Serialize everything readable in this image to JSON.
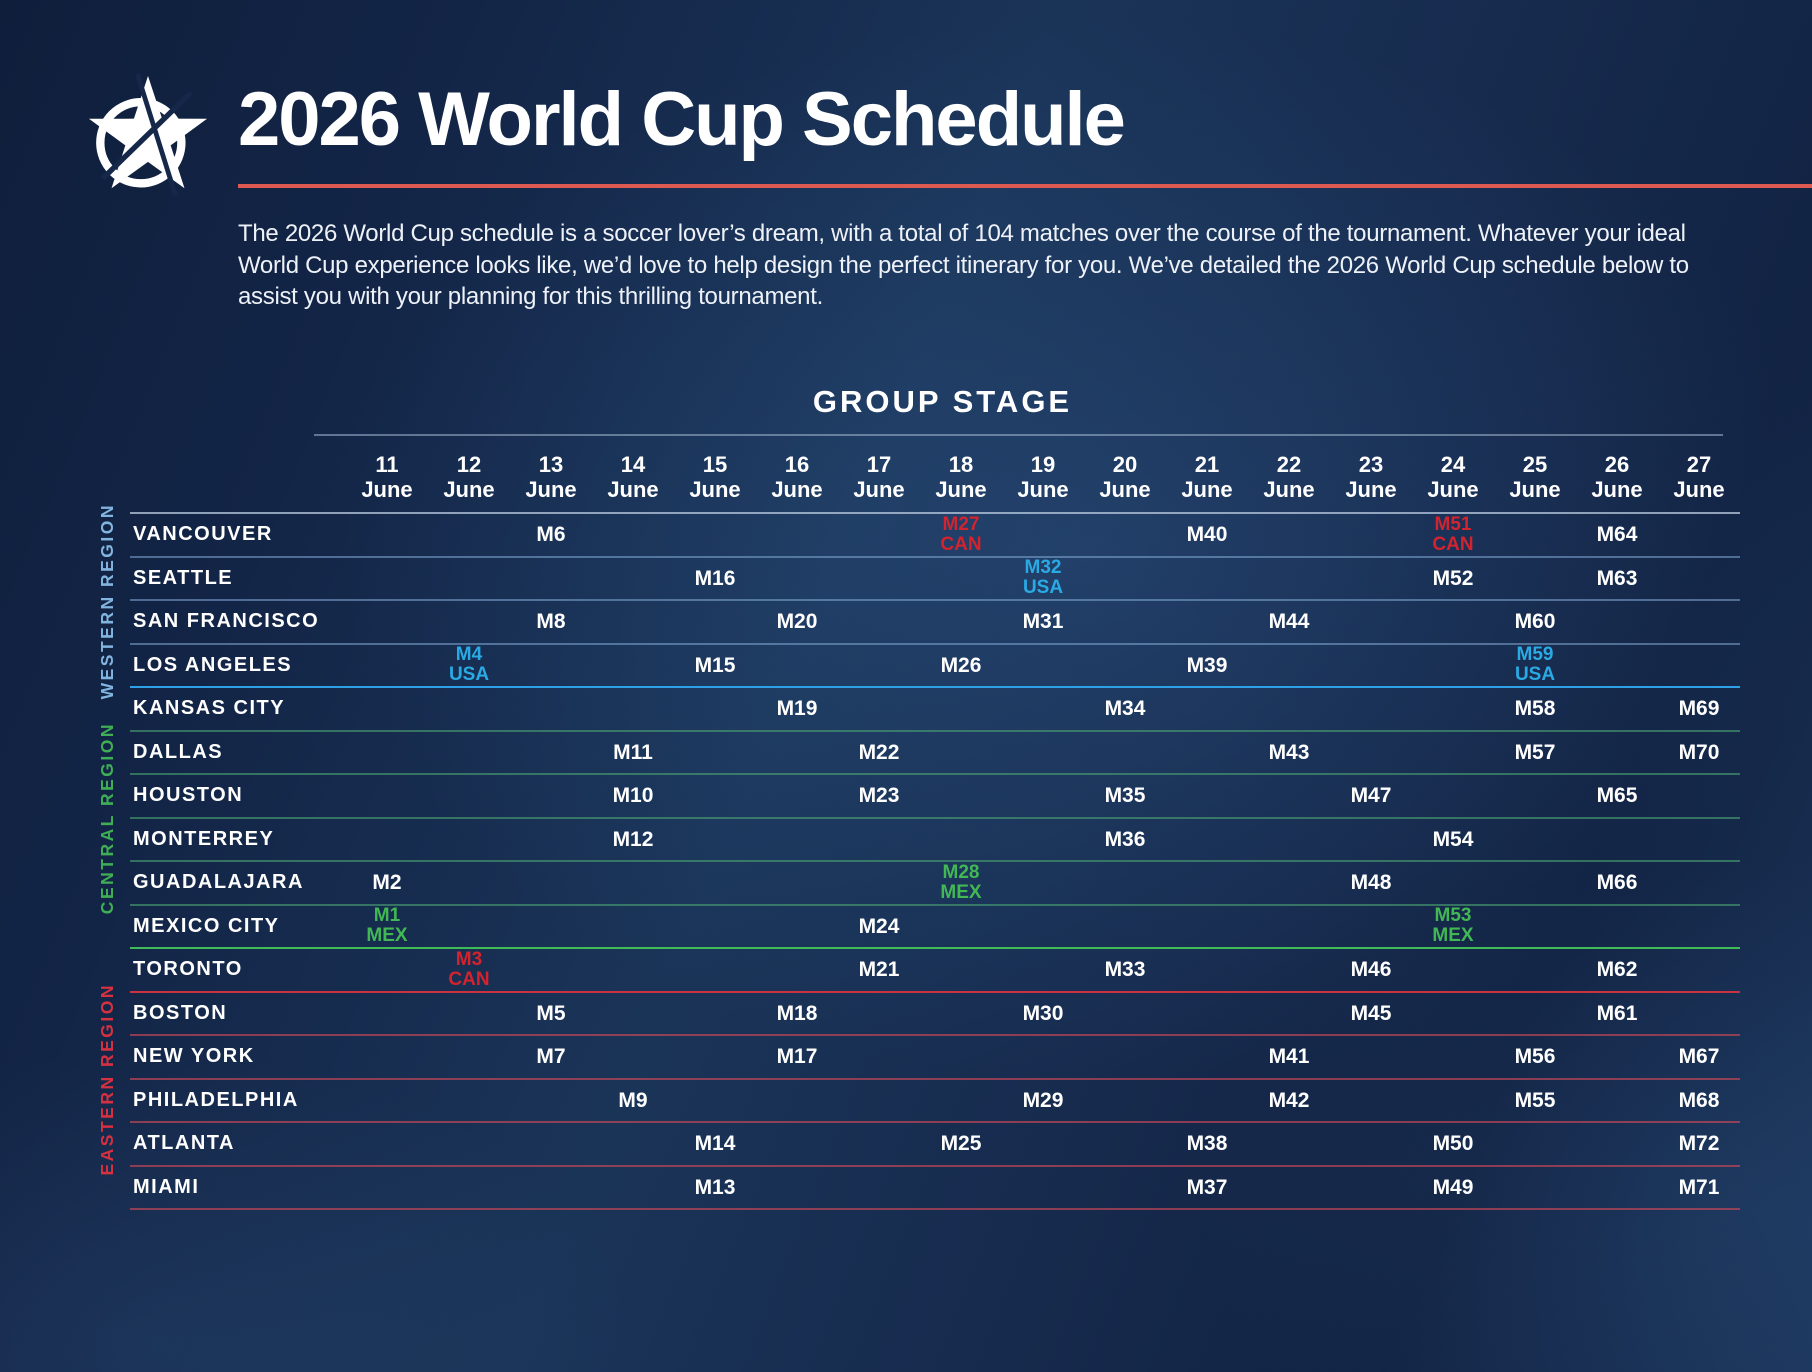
{
  "header": {
    "title": "2026 World Cup Schedule",
    "intro": "The 2026 World Cup schedule is a soccer lover’s dream, with a total of 104 matches over the course of the tournament. Whatever your ideal World Cup experience looks like, we’d love to help design the perfect itinerary for you. We’ve detailed the 2026 World Cup schedule below to assist you with your planning for this thrilling tournament."
  },
  "section": {
    "title": "GROUP STAGE"
  },
  "colors": {
    "title_underline": "#dd5a52",
    "table_top_line": "rgba(185,203,223,0.75)",
    "section_underline": "rgba(175,196,220,0.5)"
  },
  "schedule": {
    "dates": [
      {
        "day": "11",
        "month": "June"
      },
      {
        "day": "12",
        "month": "June"
      },
      {
        "day": "13",
        "month": "June"
      },
      {
        "day": "14",
        "month": "June"
      },
      {
        "day": "15",
        "month": "June"
      },
      {
        "day": "16",
        "month": "June"
      },
      {
        "day": "17",
        "month": "June"
      },
      {
        "day": "18",
        "month": "June"
      },
      {
        "day": "19",
        "month": "June"
      },
      {
        "day": "20",
        "month": "June"
      },
      {
        "day": "21",
        "month": "June"
      },
      {
        "day": "22",
        "month": "June"
      },
      {
        "day": "23",
        "month": "June"
      },
      {
        "day": "24",
        "month": "June"
      },
      {
        "day": "25",
        "month": "June"
      },
      {
        "day": "26",
        "month": "June"
      },
      {
        "day": "27",
        "month": "June"
      }
    ],
    "team_colors": {
      "USA": "#2aaae4",
      "MEX": "#41b854",
      "CAN": "#d2232e"
    },
    "regions": [
      {
        "name": "WESTERN REGION",
        "label_color": "#82b4e0",
        "row_line": "rgba(130,170,212,0.55)",
        "end_line": "#2da0e6",
        "cities": [
          {
            "name": "VANCOUVER",
            "matches": [
              {
                "day": "13",
                "m": "M6"
              },
              {
                "day": "18",
                "m": "M27",
                "team": "CAN"
              },
              {
                "day": "21",
                "m": "M40"
              },
              {
                "day": "24",
                "m": "M51",
                "team": "CAN"
              },
              {
                "day": "26",
                "m": "M64"
              }
            ]
          },
          {
            "name": "SEATTLE",
            "matches": [
              {
                "day": "15",
                "m": "M16"
              },
              {
                "day": "19",
                "m": "M32",
                "team": "USA"
              },
              {
                "day": "24",
                "m": "M52"
              },
              {
                "day": "26",
                "m": "M63"
              }
            ]
          },
          {
            "name": "SAN FRANCISCO",
            "matches": [
              {
                "day": "13",
                "m": "M8"
              },
              {
                "day": "16",
                "m": "M20"
              },
              {
                "day": "19",
                "m": "M31"
              },
              {
                "day": "22",
                "m": "M44"
              },
              {
                "day": "25",
                "m": "M60"
              }
            ]
          },
          {
            "name": "LOS ANGELES",
            "matches": [
              {
                "day": "12",
                "m": "M4",
                "team": "USA"
              },
              {
                "day": "15",
                "m": "M15"
              },
              {
                "day": "18",
                "m": "M26"
              },
              {
                "day": "21",
                "m": "M39"
              },
              {
                "day": "25",
                "m": "M59",
                "team": "USA"
              }
            ]
          }
        ]
      },
      {
        "name": "CENTRAL REGION",
        "label_color": "#3fae55",
        "row_line": "rgba(75,165,115,0.6)",
        "end_line": "#3fbb58",
        "cities": [
          {
            "name": "KANSAS CITY",
            "matches": [
              {
                "day": "16",
                "m": "M19"
              },
              {
                "day": "20",
                "m": "M34"
              },
              {
                "day": "25",
                "m": "M58"
              },
              {
                "day": "27",
                "m": "M69"
              }
            ]
          },
          {
            "name": "DALLAS",
            "matches": [
              {
                "day": "14",
                "m": "M11"
              },
              {
                "day": "17",
                "m": "M22"
              },
              {
                "day": "22",
                "m": "M43"
              },
              {
                "day": "25",
                "m": "M57"
              },
              {
                "day": "27",
                "m": "M70"
              }
            ]
          },
          {
            "name": "HOUSTON",
            "matches": [
              {
                "day": "14",
                "m": "M10"
              },
              {
                "day": "17",
                "m": "M23"
              },
              {
                "day": "20",
                "m": "M35"
              },
              {
                "day": "23",
                "m": "M47"
              },
              {
                "day": "26",
                "m": "M65"
              }
            ]
          },
          {
            "name": "MONTERREY",
            "matches": [
              {
                "day": "14",
                "m": "M12"
              },
              {
                "day": "20",
                "m": "M36"
              },
              {
                "day": "24",
                "m": "M54"
              }
            ]
          },
          {
            "name": "GUADALAJARA",
            "matches": [
              {
                "day": "11",
                "m": "M2"
              },
              {
                "day": "18",
                "m": "M28",
                "team": "MEX"
              },
              {
                "day": "23",
                "m": "M48"
              },
              {
                "day": "26",
                "m": "M66"
              }
            ]
          },
          {
            "name": "MEXICO CITY",
            "matches": [
              {
                "day": "11",
                "m": "M1",
                "team": "MEX"
              },
              {
                "day": "17",
                "m": "M24"
              },
              {
                "day": "24",
                "m": "M53",
                "team": "MEX"
              }
            ]
          }
        ]
      },
      {
        "name": "EASTERN REGION",
        "label_color": "#d53140",
        "row_line": "rgba(205,72,88,0.65)",
        "end_line": "rgba(205,72,88,0.65)",
        "cities": [
          {
            "name": "TORONTO",
            "line": "#cb3240",
            "matches": [
              {
                "day": "12",
                "m": "M3",
                "team": "CAN"
              },
              {
                "day": "17",
                "m": "M21"
              },
              {
                "day": "20",
                "m": "M33"
              },
              {
                "day": "23",
                "m": "M46"
              },
              {
                "day": "26",
                "m": "M62"
              }
            ]
          },
          {
            "name": "BOSTON",
            "matches": [
              {
                "day": "13",
                "m": "M5"
              },
              {
                "day": "16",
                "m": "M18"
              },
              {
                "day": "19",
                "m": "M30"
              },
              {
                "day": "23",
                "m": "M45"
              },
              {
                "day": "26",
                "m": "M61"
              }
            ]
          },
          {
            "name": "NEW YORK",
            "matches": [
              {
                "day": "13",
                "m": "M7"
              },
              {
                "day": "16",
                "m": "M17"
              },
              {
                "day": "22",
                "m": "M41"
              },
              {
                "day": "25",
                "m": "M56"
              },
              {
                "day": "27",
                "m": "M67"
              }
            ]
          },
          {
            "name": "PHILADELPHIA",
            "matches": [
              {
                "day": "14",
                "m": "M9"
              },
              {
                "day": "19",
                "m": "M29"
              },
              {
                "day": "22",
                "m": "M42"
              },
              {
                "day": "25",
                "m": "M55"
              },
              {
                "day": "27",
                "m": "M68"
              }
            ]
          },
          {
            "name": "ATLANTA",
            "matches": [
              {
                "day": "15",
                "m": "M14"
              },
              {
                "day": "18",
                "m": "M25"
              },
              {
                "day": "21",
                "m": "M38"
              },
              {
                "day": "24",
                "m": "M50"
              },
              {
                "day": "27",
                "m": "M72"
              }
            ]
          },
          {
            "name": "MIAMI",
            "matches": [
              {
                "day": "15",
                "m": "M13"
              },
              {
                "day": "21",
                "m": "M37"
              },
              {
                "day": "24",
                "m": "M49"
              },
              {
                "day": "27",
                "m": "M71"
              }
            ]
          }
        ]
      }
    ]
  }
}
